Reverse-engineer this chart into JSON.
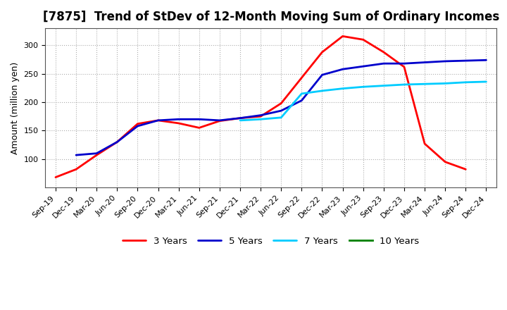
{
  "title": "[7875]  Trend of StDev of 12-Month Moving Sum of Ordinary Incomes",
  "ylabel": "Amount (million yen)",
  "x_labels": [
    "Sep-19",
    "Dec-19",
    "Mar-20",
    "Jun-20",
    "Sep-20",
    "Dec-20",
    "Mar-21",
    "Jun-21",
    "Sep-21",
    "Dec-21",
    "Mar-22",
    "Jun-22",
    "Sep-22",
    "Dec-22",
    "Mar-23",
    "Jun-23",
    "Sep-23",
    "Dec-23",
    "Mar-24",
    "Jun-24",
    "Sep-24",
    "Dec-24"
  ],
  "series": [
    {
      "name": "3 Years",
      "color": "#ff0000",
      "linewidth": 2.0,
      "data_x": [
        0,
        1,
        2,
        3,
        4,
        5,
        6,
        7,
        8,
        9,
        10,
        11,
        12,
        13,
        14,
        15,
        16,
        17,
        18,
        19,
        20
      ],
      "data_y": [
        68,
        82,
        107,
        130,
        162,
        168,
        163,
        155,
        167,
        172,
        175,
        198,
        243,
        288,
        316,
        310,
        288,
        262,
        127,
        95,
        82
      ]
    },
    {
      "name": "5 Years",
      "color": "#0000cc",
      "linewidth": 2.0,
      "data_x": [
        1,
        2,
        3,
        4,
        5,
        6,
        7,
        8,
        9,
        10,
        11,
        12,
        13,
        14,
        15,
        16,
        17,
        18,
        19,
        20,
        21
      ],
      "data_y": [
        107,
        110,
        130,
        158,
        168,
        170,
        170,
        168,
        172,
        177,
        185,
        203,
        248,
        258,
        263,
        268,
        268,
        270,
        272,
        273,
        274
      ]
    },
    {
      "name": "7 Years",
      "color": "#00ccff",
      "linewidth": 2.0,
      "data_x": [
        9,
        10,
        11,
        12,
        13,
        14,
        15,
        16,
        17,
        18,
        19,
        20,
        21
      ],
      "data_y": [
        168,
        170,
        173,
        215,
        220,
        224,
        227,
        229,
        231,
        232,
        233,
        235,
        236
      ]
    },
    {
      "name": "10 Years",
      "color": "#008000",
      "linewidth": 2.0,
      "data_x": [],
      "data_y": []
    }
  ],
  "ylim": [
    50,
    330
  ],
  "yticks": [
    100,
    150,
    200,
    250,
    300
  ],
  "xlim": [
    -0.5,
    21.5
  ],
  "background_color": "#ffffff",
  "plot_bg_color": "#ffffff",
  "grid_color": "#999999",
  "title_fontsize": 12,
  "label_fontsize": 9,
  "tick_fontsize": 8
}
